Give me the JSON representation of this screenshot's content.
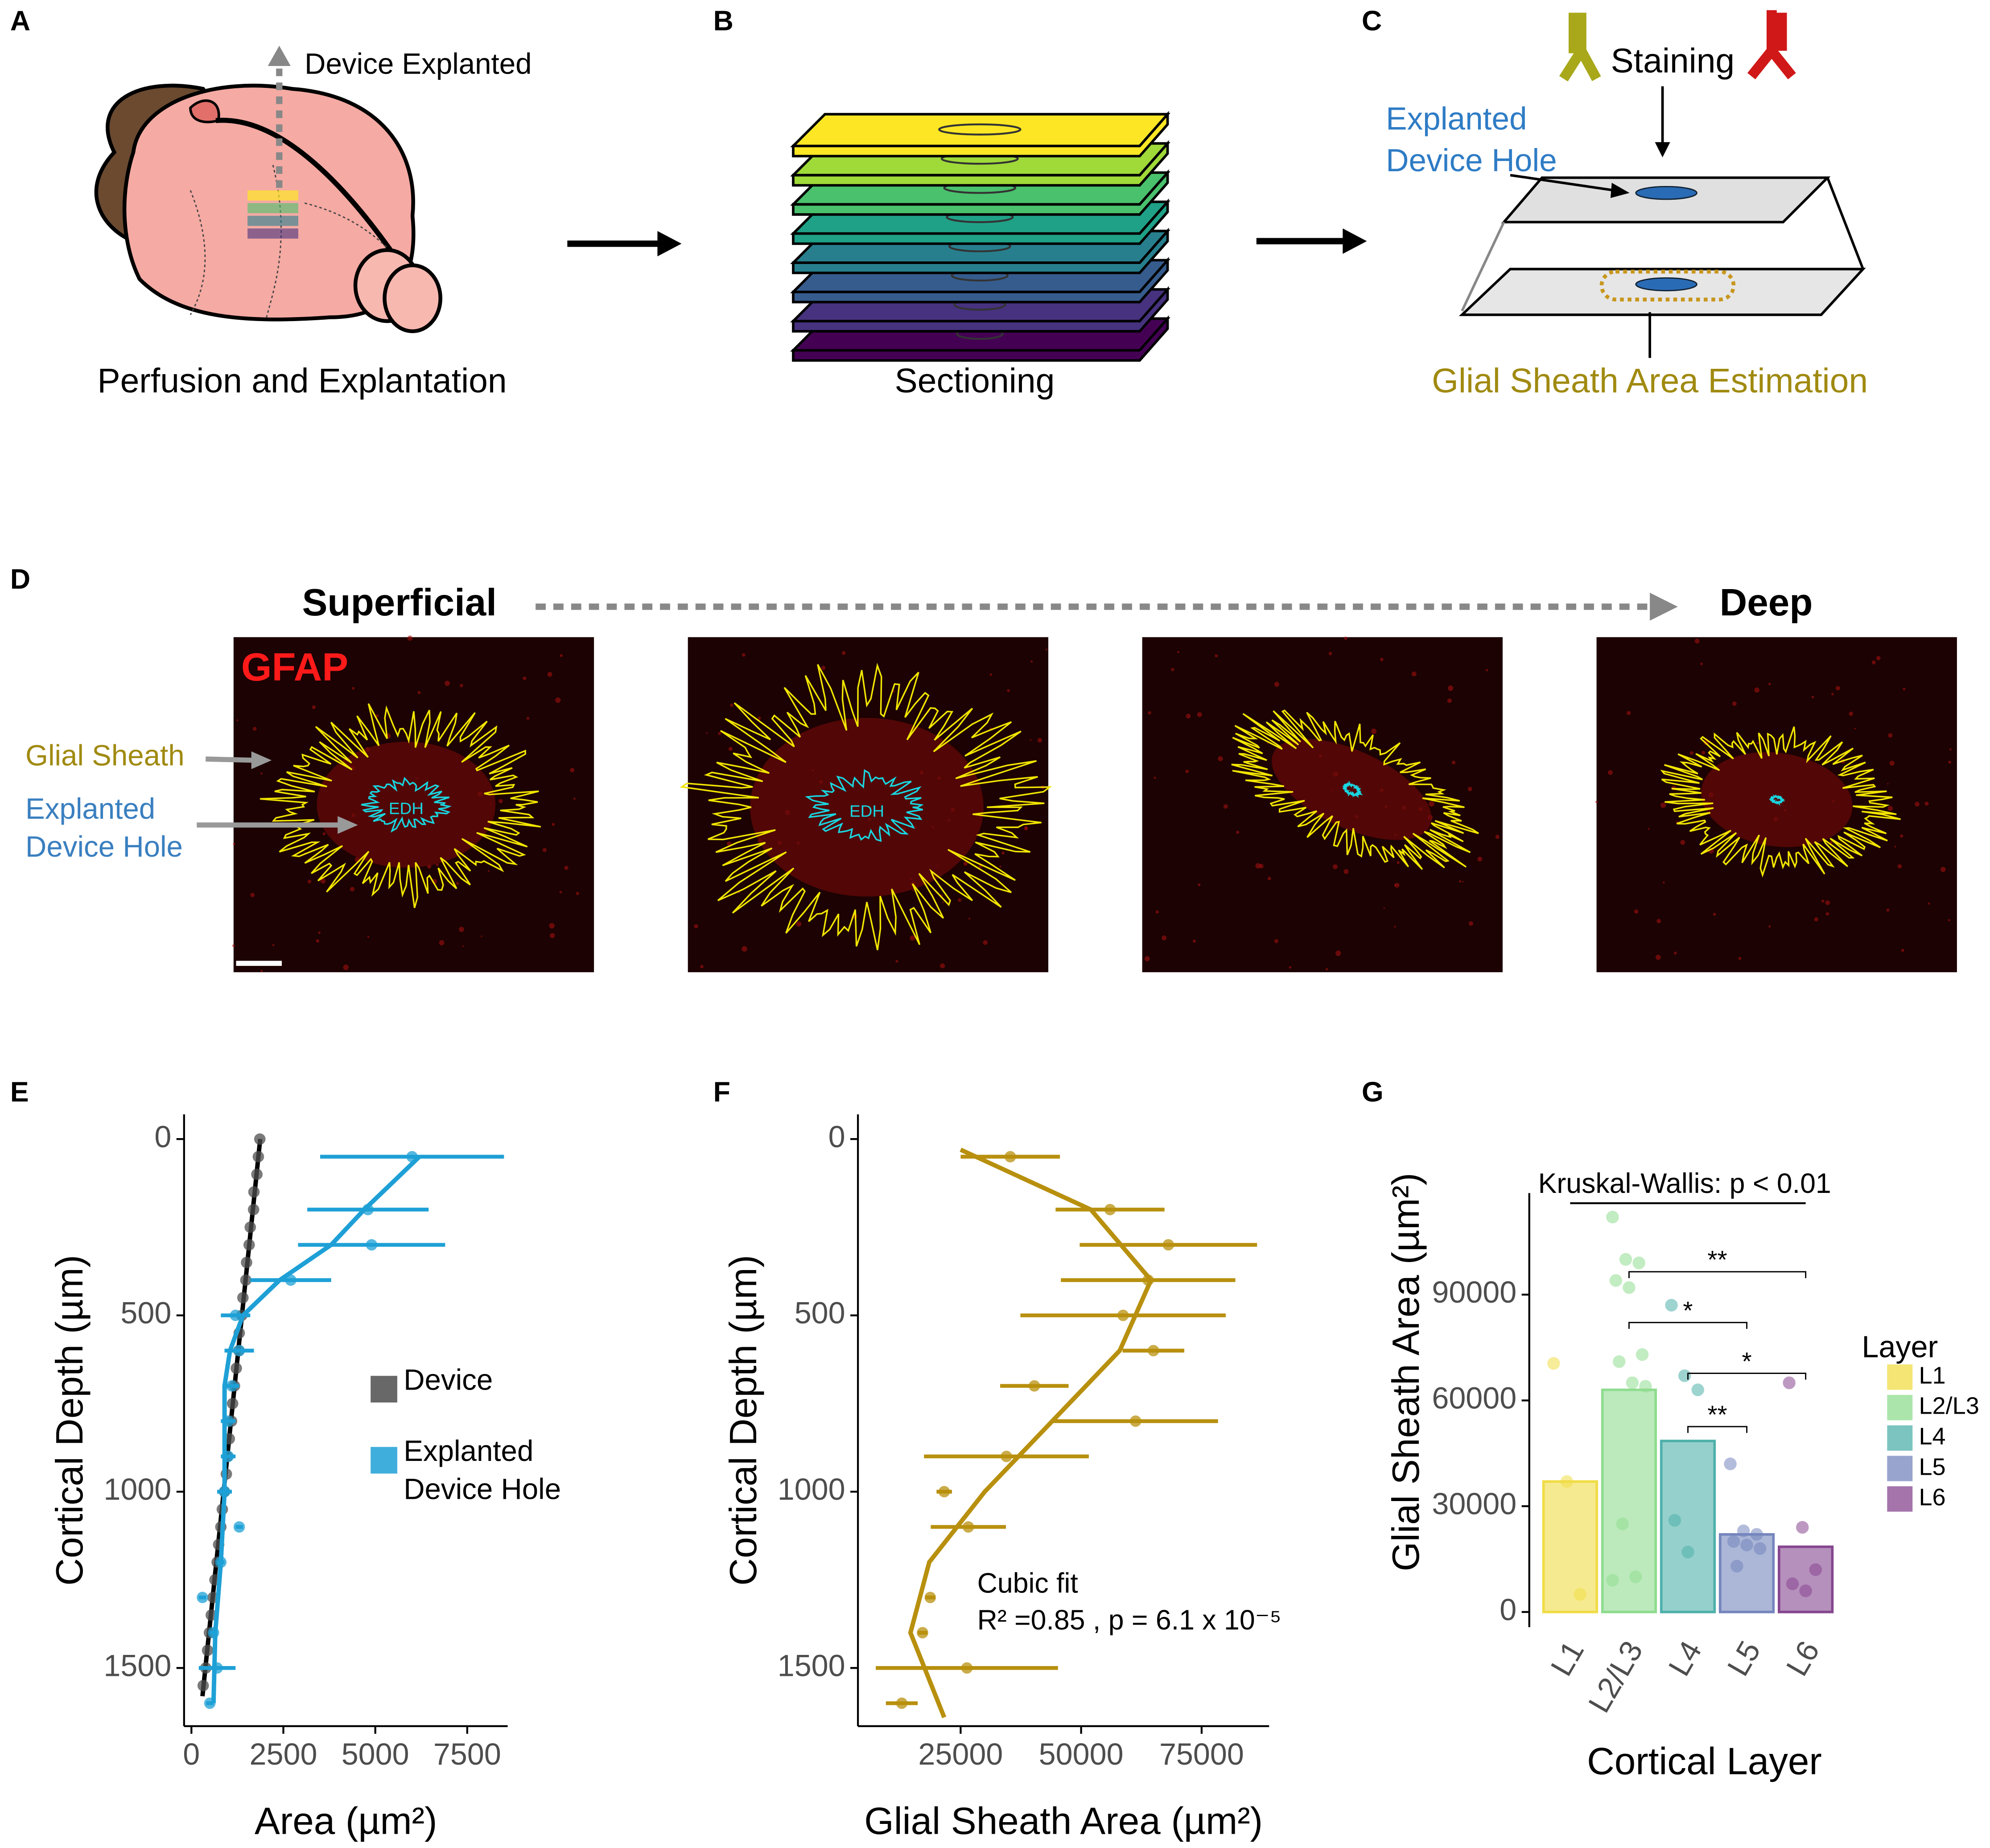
{
  "panels": {
    "A": {
      "label": "A",
      "arrow_text": "Device Explanted",
      "caption": "Perfusion and Explantation"
    },
    "B": {
      "label": "B",
      "caption": "Sectioning"
    },
    "C": {
      "label": "C",
      "staining": "Staining",
      "hole": "Explanted Device Hole",
      "caption": "Glial Sheath Area Estimation"
    },
    "D": {
      "label": "D",
      "start": "Superficial",
      "end": "Deep",
      "stain": "GFAP",
      "sheath": "Glial Sheath",
      "hole": "Explanted Device Hole",
      "edh_tags": [
        "EDH",
        "EDH"
      ]
    }
  },
  "chart_data": [
    {
      "panel": "E",
      "type": "scatter",
      "x_label": "Area (µm²)",
      "y_label": "Cortical Depth (µm)",
      "xlim": [
        -200,
        8600
      ],
      "xticks": [
        0,
        2500,
        5000,
        7500
      ],
      "ylim": [
        -70,
        1665
      ],
      "yticks": [
        0,
        500,
        1000,
        1500
      ],
      "y_reversed": true,
      "series": [
        {
          "name": "Device",
          "color": "#4d4d4d",
          "x": [
            1860,
            1820,
            1780,
            1700,
            1690,
            1600,
            1570,
            1500,
            1480,
            1400,
            1370,
            1300,
            1290,
            1220,
            1170,
            1120,
            1090,
            1030,
            980,
            950,
            900,
            840,
            800,
            740,
            700,
            640,
            590,
            540,
            490,
            440,
            390,
            320
          ],
          "values": [
            0,
            50,
            100,
            150,
            200,
            250,
            300,
            350,
            400,
            450,
            500,
            550,
            600,
            650,
            700,
            750,
            800,
            850,
            900,
            950,
            1000,
            1050,
            1100,
            1150,
            1200,
            1250,
            1300,
            1350,
            1400,
            1450,
            1500,
            1550
          ],
          "fit": {
            "x": [
              1870,
              300
            ],
            "values": [
              0,
              1580
            ]
          }
        },
        {
          "name": "Explanted Device Hole",
          "color": "#1ea0d6",
          "x": [
            6000,
            4800,
            4900,
            2700,
            1200,
            1300,
            1100,
            1000,
            1000,
            900,
            1300,
            800,
            300,
            600,
            700,
            500
          ],
          "values": [
            50,
            200,
            300,
            400,
            500,
            600,
            700,
            800,
            900,
            1000,
            1100,
            1200,
            1300,
            1400,
            1500,
            1600
          ],
          "x_error": [
            2500,
            1650,
            2000,
            1100,
            400,
            400,
            200,
            200,
            200,
            200,
            100,
            100,
            100,
            100,
            500,
            100
          ],
          "fit": {
            "x": [
              6200,
              4700,
              3800,
              2400,
              1400,
              1050,
              900,
              900,
              900,
              800,
              650,
              600
            ],
            "values": [
              50,
              200,
              300,
              400,
              500,
              600,
              700,
              800,
              1000,
              1200,
              1400,
              1600
            ]
          }
        }
      ]
    },
    {
      "panel": "F",
      "type": "scatter",
      "x_label": "Glial Sheath Area (µm²)",
      "y_label": "Cortical Depth (µm)",
      "xlim": [
        3700,
        89000
      ],
      "xticks": [
        25000,
        50000,
        75000
      ],
      "ylim": [
        -70,
        1665
      ],
      "yticks": [
        0,
        500,
        1000,
        1500
      ],
      "y_reversed": true,
      "annotation": [
        "Cubic fit",
        "R² =0.85 , p = 6.1 x 10⁻⁵"
      ],
      "series": [
        {
          "color": "#b8900e",
          "x": [
            35300,
            56000,
            68100,
            63900,
            58700,
            65000,
            40300,
            61300,
            34500,
            21600,
            26600,
            18700,
            17100,
            26300,
            12800
          ],
          "values": [
            50,
            200,
            300,
            400,
            500,
            600,
            700,
            800,
            900,
            1000,
            1100,
            1300,
            1400,
            1500,
            1600
          ],
          "x_error": [
            10300,
            11300,
            18400,
            18100,
            21300,
            6400,
            7100,
            17100,
            17100,
            1600,
            7800,
            1000,
            1000,
            18900,
            3300
          ],
          "fit": {
            "x": [
              25000,
              52000,
              64500,
              58000,
              44000,
              30000,
              18500,
              14600,
              21600
            ],
            "values": [
              30,
              200,
              400,
              600,
              800,
              1000,
              1200,
              1400,
              1640
            ]
          }
        }
      ]
    },
    {
      "panel": "G",
      "type": "bar",
      "x_label": "Cortical Layer",
      "y_label": "Glial Sheath Area (µm²)",
      "categories": [
        "L1",
        "L2/L3",
        "L4",
        "L5",
        "L6"
      ],
      "values": [
        37000,
        63000,
        48500,
        22000,
        18500
      ],
      "colors": [
        "#f0dc46",
        "#8fdc8f",
        "#4fb0aa",
        "#7585bd",
        "#86468f"
      ],
      "points": [
        [
          70500,
          37000,
          5000
        ],
        [
          112000,
          100000,
          99000,
          94000,
          92000,
          73000,
          71000,
          65000,
          64000,
          25000,
          10000,
          9000
        ],
        [
          87000,
          67000,
          63000,
          26000,
          17000
        ],
        [
          42000,
          23000,
          22000,
          20000,
          19000,
          18000,
          13000
        ],
        [
          65000,
          24000,
          12000,
          8000,
          6000
        ]
      ],
      "ylim": [
        -4300,
        118800
      ],
      "yticks": [
        0,
        30000,
        60000,
        90000
      ],
      "legend_title": "Layer",
      "annotation": "Kruskal-Wallis: p < 0.01",
      "comparisons": [
        {
          "from": "L2/L3",
          "to": "L6",
          "label": "**"
        },
        {
          "from": "L2/L3",
          "to": "L5",
          "label": "*"
        },
        {
          "from": "L4",
          "to": "L6",
          "label": "*"
        },
        {
          "from": "L4",
          "to": "L5",
          "label": "**"
        }
      ]
    }
  ]
}
